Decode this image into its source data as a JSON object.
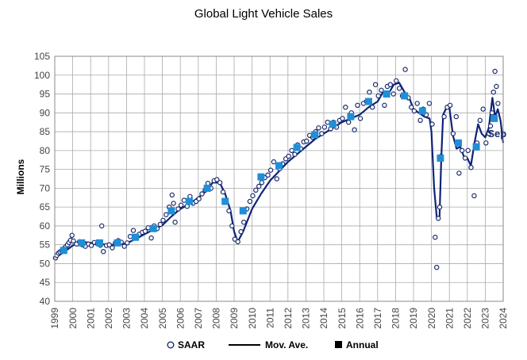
{
  "chart_data": {
    "type": "line",
    "title": "Global Light Vehicle Sales",
    "xlabel": "",
    "ylabel": "Millions",
    "xlim": [
      1999,
      2024
    ],
    "ylim": [
      40,
      105
    ],
    "y_ticks": [
      40,
      45,
      50,
      55,
      60,
      65,
      70,
      75,
      80,
      85,
      90,
      95,
      100,
      105
    ],
    "x_ticks": [
      "1999",
      "2000",
      "2001",
      "2002",
      "2003",
      "2004",
      "2005",
      "2006",
      "2007",
      "2008",
      "2009",
      "2010",
      "2011",
      "2012",
      "2013",
      "2014",
      "2015",
      "2016",
      "2017",
      "2018",
      "2019",
      "2020",
      "2021",
      "2022",
      "2023",
      "2024"
    ],
    "grid": true,
    "legend_position": "bottom",
    "colors": {
      "saar": "#1a2a6c",
      "mov_ave": "#0f2477",
      "annual": "#1f8fd6",
      "grid": "#aaaaaa"
    },
    "annotation": {
      "text": "Sep",
      "x": 2023.75,
      "y": 83.5
    },
    "series": [
      {
        "name": "SAAR",
        "style": "open-circle",
        "x": [
          1999.04,
          1999.12,
          1999.21,
          1999.29,
          1999.38,
          1999.46,
          1999.54,
          1999.62,
          1999.71,
          1999.79,
          1999.88,
          1999.96,
          2000.04,
          2000.21,
          2000.38,
          2000.54,
          2000.71,
          2000.88,
          2001.04,
          2001.21,
          2001.38,
          2001.54,
          2001.62,
          2001.71,
          2001.88,
          2002.04,
          2002.21,
          2002.38,
          2002.54,
          2002.71,
          2002.88,
          2003.04,
          2003.21,
          2003.38,
          2003.54,
          2003.71,
          2003.88,
          2004.04,
          2004.21,
          2004.38,
          2004.54,
          2004.71,
          2004.88,
          2005.04,
          2005.21,
          2005.38,
          2005.54,
          2005.62,
          2005.71,
          2005.88,
          2006.04,
          2006.21,
          2006.38,
          2006.54,
          2006.71,
          2006.88,
          2007.04,
          2007.21,
          2007.38,
          2007.54,
          2007.71,
          2007.88,
          2008.04,
          2008.21,
          2008.38,
          2008.54,
          2008.71,
          2008.88,
          2009.04,
          2009.21,
          2009.38,
          2009.54,
          2009.71,
          2009.88,
          2010.04,
          2010.21,
          2010.38,
          2010.54,
          2010.71,
          2010.88,
          2011.04,
          2011.21,
          2011.38,
          2011.54,
          2011.71,
          2011.88,
          2012.04,
          2012.21,
          2012.38,
          2012.54,
          2012.71,
          2012.88,
          2013.04,
          2013.21,
          2013.38,
          2013.54,
          2013.71,
          2013.88,
          2014.04,
          2014.21,
          2014.38,
          2014.54,
          2014.71,
          2014.88,
          2015.04,
          2015.21,
          2015.38,
          2015.54,
          2015.71,
          2015.88,
          2016.04,
          2016.21,
          2016.38,
          2016.54,
          2016.71,
          2016.88,
          2017.04,
          2017.21,
          2017.38,
          2017.54,
          2017.71,
          2017.88,
          2018.04,
          2018.21,
          2018.38,
          2018.54,
          2018.71,
          2018.88,
          2019.04,
          2019.21,
          2019.38,
          2019.54,
          2019.71,
          2019.88,
          2020.04,
          2020.21,
          2020.29,
          2020.38,
          2020.46,
          2020.54,
          2020.71,
          2020.88,
          2021.04,
          2021.21,
          2021.38,
          2021.54,
          2021.71,
          2021.88,
          2022.04,
          2022.21,
          2022.38,
          2022.54,
          2022.71,
          2022.88,
          2023.04,
          2023.21,
          2023.29,
          2023.38,
          2023.46,
          2023.54,
          2023.62,
          2023.71
        ],
        "y": [
          51.5,
          52.2,
          52.8,
          53.1,
          53.4,
          53.8,
          54.1,
          54.5,
          55.0,
          55.6,
          56.2,
          57.5,
          56.0,
          55.2,
          55.8,
          55.0,
          54.6,
          55.2,
          54.8,
          55.6,
          55.3,
          54.9,
          60.0,
          53.2,
          54.8,
          55.0,
          54.2,
          55.5,
          56.1,
          55.7,
          54.6,
          55.5,
          57.2,
          58.8,
          57.0,
          57.8,
          58.3,
          58.6,
          59.5,
          56.8,
          60.0,
          59.3,
          60.4,
          61.5,
          63.0,
          65.0,
          68.2,
          66.0,
          61.0,
          64.5,
          65.5,
          66.8,
          65.2,
          67.8,
          66.0,
          66.5,
          67.2,
          68.5,
          69.5,
          71.3,
          70.0,
          72.0,
          72.3,
          71.5,
          69.0,
          66.8,
          64.0,
          60.0,
          56.5,
          55.8,
          58.5,
          61.0,
          64.5,
          66.5,
          68.0,
          69.5,
          70.5,
          71.5,
          72.8,
          73.5,
          74.8,
          77.0,
          72.5,
          75.2,
          76.5,
          77.8,
          78.5,
          80.0,
          79.0,
          81.5,
          80.5,
          82.3,
          82.5,
          84.0,
          83.5,
          85.0,
          86.0,
          84.5,
          86.2,
          87.5,
          85.8,
          87.5,
          86.2,
          88.0,
          88.5,
          91.5,
          87.5,
          90.0,
          85.5,
          92.0,
          88.5,
          92.5,
          93.0,
          95.5,
          91.5,
          97.5,
          94.5,
          96.0,
          92.0,
          97.0,
          97.5,
          95.0,
          98.5,
          96.5,
          94.5,
          101.5,
          94.0,
          91.5,
          90.5,
          92.5,
          88.0,
          91.0,
          89.5,
          92.5,
          87.0,
          57.0,
          49.0,
          62.0,
          65.0,
          78.5,
          89.0,
          91.5,
          92.0,
          84.5,
          89.0,
          74.0,
          80.0,
          78.0,
          80.0,
          75.5,
          68.0,
          82.0,
          88.0,
          91.0,
          82.0,
          84.5,
          86.5,
          90.0,
          95.5,
          101.0,
          97.0,
          92.5
        ]
      },
      {
        "name": "Mov. Ave.",
        "style": "line",
        "x": [
          1999.0,
          1999.5,
          2000.0,
          2000.5,
          2001.0,
          2001.5,
          2002.0,
          2002.5,
          2003.0,
          2003.5,
          2004.0,
          2004.5,
          2005.0,
          2005.5,
          2006.0,
          2006.5,
          2007.0,
          2007.5,
          2007.8,
          2008.2,
          2008.5,
          2008.8,
          2009.0,
          2009.2,
          2009.5,
          2010.0,
          2010.5,
          2011.0,
          2011.5,
          2012.0,
          2012.5,
          2013.0,
          2013.5,
          2014.0,
          2014.5,
          2015.0,
          2015.5,
          2016.0,
          2016.5,
          2017.0,
          2017.3,
          2017.6,
          2017.9,
          2018.2,
          2018.5,
          2018.8,
          2019.0,
          2019.3,
          2019.6,
          2019.9,
          2020.0,
          2020.15,
          2020.3,
          2020.45,
          2020.55,
          2020.65,
          2020.8,
          2021.0,
          2021.2,
          2021.4,
          2021.6,
          2021.8,
          2022.0,
          2022.2,
          2022.4,
          2022.6,
          2022.8,
          2023.0,
          2023.2,
          2023.4,
          2023.55,
          2023.7,
          2023.85,
          2024.0
        ],
        "y": [
          51.5,
          53.0,
          54.8,
          55.8,
          55.5,
          55.2,
          55.0,
          55.0,
          55.4,
          56.5,
          57.8,
          59.0,
          60.2,
          62.5,
          64.5,
          65.8,
          67.5,
          69.5,
          71.5,
          71.5,
          68.5,
          64.0,
          58.5,
          55.8,
          58.5,
          64.5,
          68.5,
          72.0,
          74.5,
          77.0,
          79.0,
          81.0,
          83.0,
          84.5,
          86.0,
          87.5,
          88.5,
          89.5,
          91.5,
          93.0,
          95.5,
          95.0,
          97.5,
          98.0,
          95.5,
          93.5,
          91.0,
          90.0,
          89.0,
          88.5,
          85.0,
          70.0,
          62.0,
          62.5,
          78.0,
          89.5,
          91.0,
          91.5,
          84.0,
          80.5,
          81.0,
          78.5,
          78.0,
          76.0,
          82.0,
          87.0,
          84.5,
          83.5,
          86.0,
          94.0,
          89.0,
          91.0,
          88.0,
          82.0
        ]
      },
      {
        "name": "Annual",
        "style": "filled-square",
        "x": [
          1999.5,
          2000.5,
          2001.5,
          2002.5,
          2003.5,
          2004.5,
          2005.5,
          2006.5,
          2007.5,
          2008.5,
          2009.5,
          2010.5,
          2011.5,
          2012.5,
          2013.5,
          2014.5,
          2015.5,
          2016.5,
          2017.5,
          2018.5,
          2019.5,
          2020.5,
          2021.5,
          2022.5,
          2023.5
        ],
        "y": [
          53.5,
          55.5,
          55.5,
          55.5,
          57.0,
          59.3,
          64.0,
          66.5,
          70.0,
          66.5,
          64.0,
          73.0,
          76.0,
          80.8,
          84.2,
          87.0,
          89.0,
          93.0,
          95.0,
          94.5,
          90.5,
          78.0,
          82.0,
          81.0,
          88.5
        ]
      }
    ]
  }
}
